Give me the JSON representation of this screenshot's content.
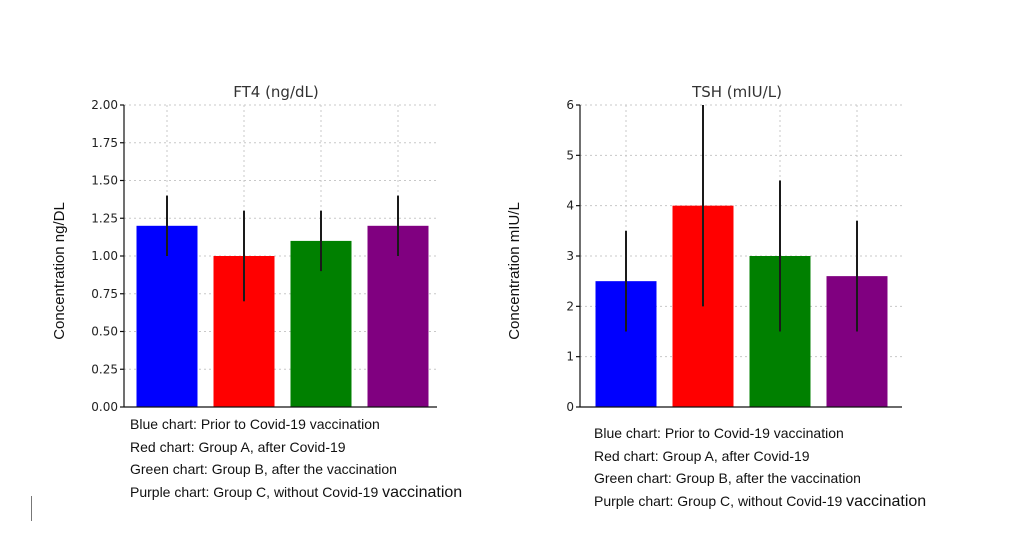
{
  "chart_data": [
    {
      "type": "bar",
      "title": "FT4 (ng/dL)",
      "ylabel": "Concentration ng/DL",
      "xlabel": "",
      "ylim": [
        0,
        2.0
      ],
      "yticks": [
        0.0,
        0.25,
        0.5,
        0.75,
        1.0,
        1.25,
        1.5,
        1.75,
        2.0
      ],
      "ytick_labels": [
        "0.00",
        "0.25",
        "0.50",
        "0.75",
        "1.00",
        "1.25",
        "1.50",
        "1.75",
        "2.00"
      ],
      "grid": true,
      "bars": [
        {
          "value": 1.2,
          "err_low": 1.0,
          "err_high": 1.4,
          "color": "#0000ff"
        },
        {
          "value": 1.0,
          "err_low": 0.7,
          "err_high": 1.3,
          "color": "#ff0000"
        },
        {
          "value": 1.1,
          "err_low": 0.9,
          "err_high": 1.3,
          "color": "#008000"
        },
        {
          "value": 1.2,
          "err_low": 1.0,
          "err_high": 1.4,
          "color": "#800080"
        }
      ],
      "legend": [
        {
          "text": "Blue chart: Prior to Covid-19 vaccination"
        },
        {
          "text": "Red chart: Group A, after Covid-19"
        },
        {
          "text": "Green chart: Group B, after the vaccination"
        },
        {
          "text": "Purple chart: Group C, without Covid-19 ",
          "emphasis": "vaccination"
        }
      ]
    },
    {
      "type": "bar",
      "title": "TSH (mIU/L)",
      "ylabel": "Concentration mIU/L",
      "xlabel": "",
      "ylim": [
        0,
        6
      ],
      "yticks": [
        0,
        1,
        2,
        3,
        4,
        5,
        6
      ],
      "ytick_labels": [
        "0",
        "1",
        "2",
        "3",
        "4",
        "5",
        "6"
      ],
      "grid": true,
      "bars": [
        {
          "value": 2.5,
          "err_low": 1.5,
          "err_high": 3.5,
          "color": "#0000ff"
        },
        {
          "value": 4.0,
          "err_low": 2.0,
          "err_high": 6.0,
          "color": "#ff0000"
        },
        {
          "value": 3.0,
          "err_low": 1.5,
          "err_high": 4.5,
          "color": "#008000"
        },
        {
          "value": 2.6,
          "err_low": 1.5,
          "err_high": 3.7,
          "color": "#800080"
        }
      ],
      "legend": [
        {
          "text": "Blue chart: Prior to Covid-19 vaccination"
        },
        {
          "text": "Red chart: Group A, after Covid-19"
        },
        {
          "text": "Green chart: Group B, after the vaccination"
        },
        {
          "text": "Purple chart: Group C, without Covid-19 ",
          "emphasis": "vaccination"
        }
      ]
    }
  ]
}
